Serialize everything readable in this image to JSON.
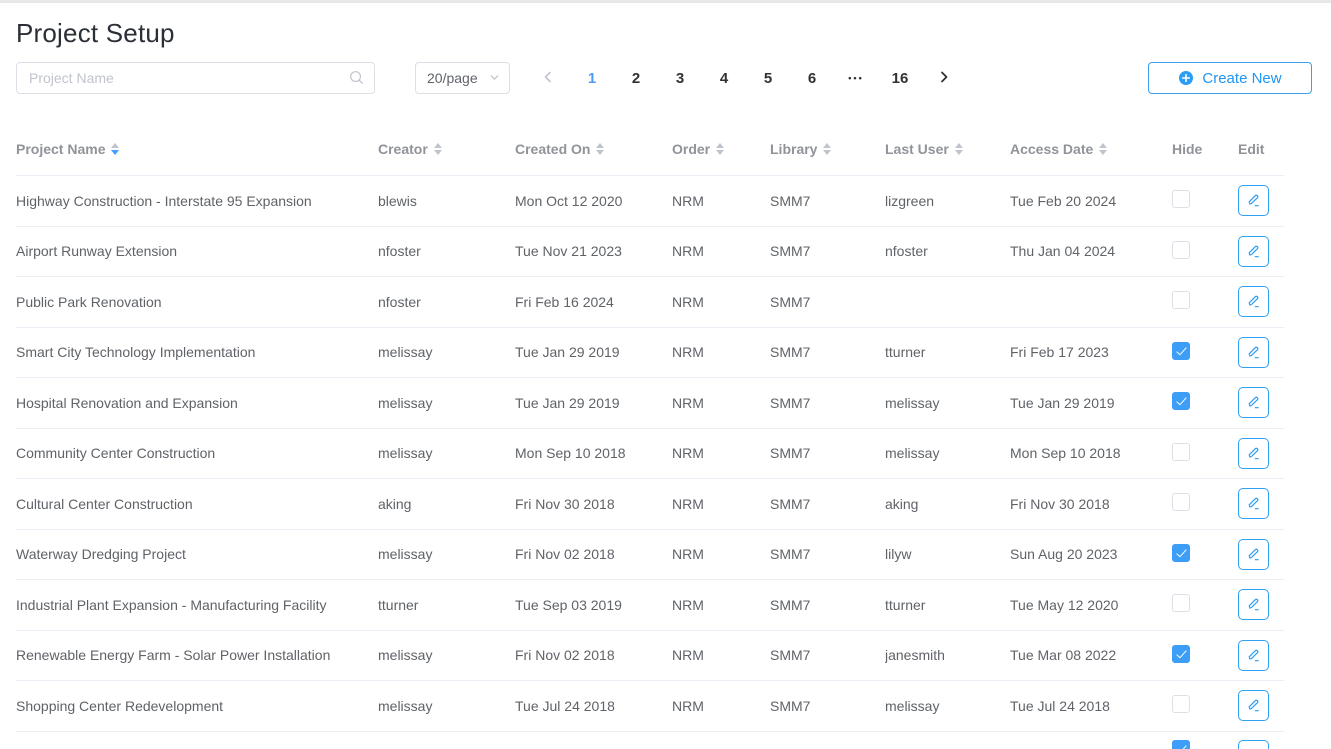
{
  "page": {
    "title": "Project Setup"
  },
  "toolbar": {
    "search_placeholder": "Project Name",
    "page_size_label": "20/page",
    "create_label": "Create New"
  },
  "pagination": {
    "pages": [
      "1",
      "2",
      "3",
      "4",
      "5",
      "6"
    ],
    "active_page": "1",
    "ellipsis": "•••",
    "last_page": "16"
  },
  "icons": {
    "search_icon": "magnifier",
    "chevron_down_icon": "v",
    "prev_icon": "‹",
    "next_icon": "›",
    "plus_icon": "⊕",
    "pencil_icon": "✎",
    "sort_caret_icon": "▲▼"
  },
  "colors": {
    "accent_blue": "#2b9df4",
    "checkbox_blue": "#3d9ef7",
    "active_page_blue": "#4a9ef8",
    "sort_active_blue": "#409eff",
    "header_text": "#909399",
    "cell_text": "#5f6368",
    "row_border": "#ebeef5",
    "input_border": "#dcdfe6"
  },
  "table": {
    "columns": [
      {
        "key": "name",
        "label": "Project Name",
        "sortable": true,
        "sort": "desc"
      },
      {
        "key": "creator",
        "label": "Creator",
        "sortable": true,
        "sort": ""
      },
      {
        "key": "created_on",
        "label": "Created On",
        "sortable": true,
        "sort": ""
      },
      {
        "key": "order",
        "label": "Order",
        "sortable": true,
        "sort": ""
      },
      {
        "key": "library",
        "label": "Library",
        "sortable": true,
        "sort": ""
      },
      {
        "key": "last_user",
        "label": "Last User",
        "sortable": true,
        "sort": ""
      },
      {
        "key": "access_date",
        "label": "Access Date",
        "sortable": true,
        "sort": ""
      },
      {
        "key": "hide",
        "label": "Hide",
        "sortable": false,
        "sort": ""
      },
      {
        "key": "edit",
        "label": "Edit",
        "sortable": false,
        "sort": ""
      }
    ],
    "rows": [
      {
        "name": "Highway Construction - Interstate 95 Expansion",
        "creator": "blewis",
        "created_on": "Mon Oct 12 2020",
        "order": "NRM",
        "library": "SMM7",
        "last_user": "lizgreen",
        "access_date": "Tue Feb 20 2024",
        "hide": false,
        "partial": false
      },
      {
        "name": "Airport Runway Extension",
        "creator": "nfoster",
        "created_on": "Tue Nov 21 2023",
        "order": "NRM",
        "library": "SMM7",
        "last_user": "nfoster",
        "access_date": "Thu Jan 04 2024",
        "hide": false,
        "partial": false
      },
      {
        "name": "Public Park Renovation",
        "creator": "nfoster",
        "created_on": "Fri Feb 16 2024",
        "order": "NRM",
        "library": "SMM7",
        "last_user": "",
        "access_date": "",
        "hide": false,
        "partial": false
      },
      {
        "name": "Smart City Technology Implementation",
        "creator": "melissay",
        "created_on": "Tue Jan 29 2019",
        "order": "NRM",
        "library": "SMM7",
        "last_user": "tturner",
        "access_date": "Fri Feb 17 2023",
        "hide": true,
        "partial": false
      },
      {
        "name": "Hospital Renovation and Expansion",
        "creator": "melissay",
        "created_on": "Tue Jan 29 2019",
        "order": "NRM",
        "library": "SMM7",
        "last_user": "melissay",
        "access_date": "Tue Jan 29 2019",
        "hide": true,
        "partial": false
      },
      {
        "name": "Community Center Construction",
        "creator": "melissay",
        "created_on": "Mon Sep 10 2018",
        "order": "NRM",
        "library": "SMM7",
        "last_user": "melissay",
        "access_date": "Mon Sep 10 2018",
        "hide": false,
        "partial": false
      },
      {
        "name": "Cultural Center Construction",
        "creator": "aking",
        "created_on": "Fri Nov 30 2018",
        "order": "NRM",
        "library": "SMM7",
        "last_user": "aking",
        "access_date": "Fri Nov 30 2018",
        "hide": false,
        "partial": false
      },
      {
        "name": "Waterway Dredging Project",
        "creator": "melissay",
        "created_on": "Fri Nov 02 2018",
        "order": "NRM",
        "library": "SMM7",
        "last_user": "lilyw",
        "access_date": "Sun Aug 20 2023",
        "hide": true,
        "partial": false
      },
      {
        "name": "Industrial Plant Expansion - Manufacturing Facility",
        "creator": "tturner",
        "created_on": "Tue Sep 03 2019",
        "order": "NRM",
        "library": "SMM7",
        "last_user": "tturner",
        "access_date": "Tue May 12 2020",
        "hide": false,
        "partial": false
      },
      {
        "name": "Renewable Energy Farm - Solar Power Installation",
        "creator": "melissay",
        "created_on": "Fri Nov 02 2018",
        "order": "NRM",
        "library": "SMM7",
        "last_user": "janesmith",
        "access_date": "Tue Mar 08 2022",
        "hide": true,
        "partial": false
      },
      {
        "name": "Shopping Center Redevelopment",
        "creator": "melissay",
        "created_on": "Tue Jul 24 2018",
        "order": "NRM",
        "library": "SMM7",
        "last_user": "melissay",
        "access_date": "Tue Jul 24 2018",
        "hide": false,
        "partial": false
      },
      {
        "name": "",
        "creator": "",
        "created_on": "",
        "order": "",
        "library": "",
        "last_user": "",
        "access_date": "",
        "hide": true,
        "partial": true
      }
    ]
  }
}
